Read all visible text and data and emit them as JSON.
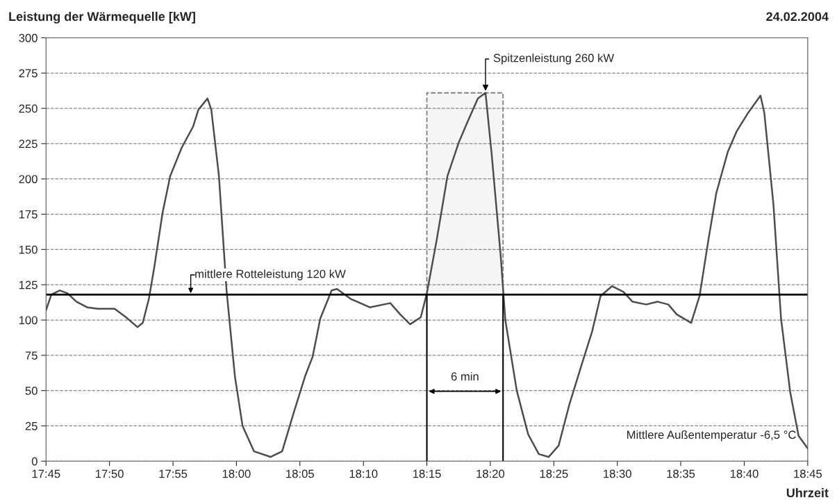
{
  "chart_data": {
    "type": "line",
    "title": "Leistung der Wärmequelle [kW]",
    "subtitle": "24.02.2004",
    "xlabel": "Uhrzeit",
    "x": [
      17.75,
      17.757,
      17.768,
      17.778,
      17.79,
      17.804,
      17.818,
      17.84,
      17.855,
      17.87,
      17.877,
      17.885,
      17.892,
      17.903,
      17.913,
      17.928,
      17.943,
      17.95,
      17.962,
      17.967,
      17.977,
      17.987,
      17.998,
      18.008,
      18.023,
      18.045,
      18.06,
      18.075,
      18.09,
      18.1,
      18.11,
      18.125,
      18.132,
      18.15,
      18.175,
      18.202,
      18.215,
      18.228,
      18.242,
      18.25,
      18.263,
      18.277,
      18.292,
      18.303,
      18.317,
      18.327,
      18.335,
      18.347,
      18.353,
      18.368,
      18.383,
      18.397,
      18.41,
      18.423,
      18.437,
      18.453,
      18.467,
      18.478,
      18.493,
      18.508,
      18.52,
      18.538,
      18.553,
      18.567,
      18.578,
      18.597,
      18.608,
      18.62,
      18.63,
      18.645,
      18.657,
      18.672,
      18.688,
      18.693,
      18.705,
      18.715,
      18.727,
      18.738,
      18.75
    ],
    "series": [
      {
        "color": "#4d4d4d",
        "values": [
          107,
          118,
          121,
          119,
          113,
          109,
          108,
          108,
          102,
          95,
          98,
          115,
          137,
          176,
          202,
          222,
          237,
          249,
          257,
          249,
          202,
          121,
          60,
          25,
          7,
          3,
          7,
          34,
          60,
          74,
          101,
          121,
          122,
          115,
          109,
          112,
          104,
          97,
          102,
          119,
          157,
          202,
          226,
          240,
          257,
          261,
          218,
          145,
          100,
          50,
          19,
          5,
          3,
          11,
          40,
          68,
          92,
          117,
          124,
          120,
          113,
          111,
          113,
          111,
          104,
          98,
          117,
          158,
          190,
          219,
          234,
          247,
          259,
          247,
          182,
          101,
          49,
          18,
          9
        ]
      }
    ],
    "xlim": [
      17.75,
      18.75
    ],
    "xticks": [
      {
        "value": 17.75,
        "label": "17:45"
      },
      {
        "value": 17.8333,
        "label": "17:50"
      },
      {
        "value": 17.9167,
        "label": "17:55"
      },
      {
        "value": 18.0,
        "label": "18:00"
      },
      {
        "value": 18.0833,
        "label": "18:05"
      },
      {
        "value": 18.1667,
        "label": "18:10"
      },
      {
        "value": 18.25,
        "label": "18:15"
      },
      {
        "value": 18.3333,
        "label": "18:20"
      },
      {
        "value": 18.4167,
        "label": "18:25"
      },
      {
        "value": 18.5,
        "label": "18:30"
      },
      {
        "value": 18.5833,
        "label": "18:35"
      },
      {
        "value": 18.6667,
        "label": "18:40"
      },
      {
        "value": 18.75,
        "label": "18:45"
      }
    ],
    "ylim": [
      0,
      300
    ],
    "yticks": [
      0,
      25,
      50,
      75,
      100,
      125,
      150,
      175,
      200,
      225,
      250,
      275,
      300
    ],
    "grid": "y",
    "ref_lines": [
      {
        "axis": "y",
        "value": 118,
        "label": "mittlere Rotteleistung 120 kW",
        "color": "#000000"
      },
      {
        "axis": "x",
        "value": 18.25,
        "color": "#000000"
      },
      {
        "axis": "x",
        "value": 18.35,
        "color": "#000000"
      }
    ],
    "bands": [
      {
        "axis": "x",
        "from": 18.25,
        "to": 18.35,
        "color": "#808080"
      }
    ],
    "annotations": [
      {
        "text": "Spitzenleistung 260 kW",
        "x": 18.327,
        "y": 261
      },
      "6 min",
      "Mittlere Außentemperatur -6,5 °C"
    ]
  }
}
